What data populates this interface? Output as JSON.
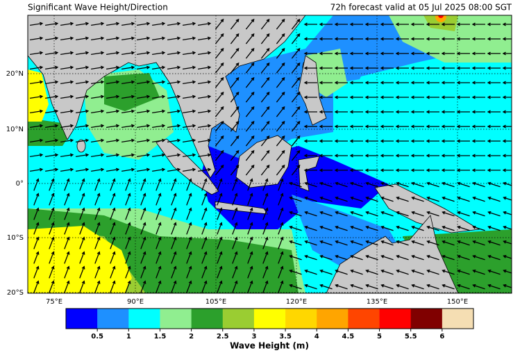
{
  "header": {
    "title": "Significant Wave Height/Direction",
    "valid": "72h forecast valid at 05 Jul 2025 08:00 SGT"
  },
  "map": {
    "lat_labels": [
      "20°N",
      "10°N",
      "0°",
      "10°S",
      "20°S"
    ],
    "lon_labels": [
      "75°E",
      "90°E",
      "105°E",
      "120°E",
      "135°E",
      "150°E"
    ]
  },
  "colorbar": {
    "label": "Wave Height (m)",
    "colors": [
      "#0000ff",
      "#1e90ff",
      "#00ffff",
      "#90ee90",
      "#2ca02c",
      "#9acd32",
      "#ffff00",
      "#ffd700",
      "#ffa500",
      "#ff4500",
      "#ff0000",
      "#800000",
      "#f5deb3"
    ],
    "ticks": [
      0.5,
      1,
      1.5,
      2,
      2.5,
      3,
      3.5,
      4,
      4.5,
      5,
      5.5,
      6
    ]
  }
}
